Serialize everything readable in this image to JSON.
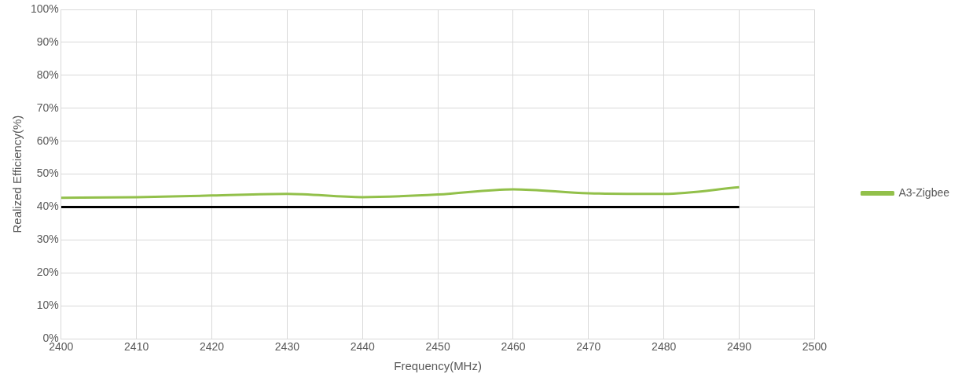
{
  "chart_data": {
    "type": "line",
    "xlabel": "Frequency(MHz)",
    "ylabel": "Realized Efficiency(%)",
    "x": [
      2400,
      2410,
      2420,
      2430,
      2440,
      2450,
      2460,
      2470,
      2480,
      2490
    ],
    "series": [
      {
        "name": "A3-Zigbee",
        "color": "#92c04a",
        "values": [
          42.8,
          43,
          43.5,
          44,
          43,
          43.8,
          45.4,
          44.2,
          44,
          46
        ]
      },
      {
        "color": "#000000",
        "x": [
          2400,
          2490
        ],
        "values": [
          40,
          40
        ]
      }
    ],
    "xlim": [
      2400,
      2500
    ],
    "xticks": [
      2400,
      2410,
      2420,
      2430,
      2440,
      2450,
      2460,
      2470,
      2480,
      2490,
      2500
    ],
    "ylim": [
      0,
      100
    ],
    "yticks": [
      {
        "value": 0,
        "label": "0%"
      },
      {
        "value": 10,
        "label": "10%"
      },
      {
        "value": 20,
        "label": "20%"
      },
      {
        "value": 30,
        "label": "30%"
      },
      {
        "value": 40,
        "label": "40%"
      },
      {
        "value": 50,
        "label": "50%"
      },
      {
        "value": 60,
        "label": "60%"
      },
      {
        "value": 70,
        "label": "70%"
      },
      {
        "value": 80,
        "label": "80%"
      },
      {
        "value": 90,
        "label": "90%"
      },
      {
        "value": 100,
        "label": "100%"
      }
    ],
    "grid": true,
    "legend": "right",
    "marker": "none",
    "line_style": "solid"
  }
}
